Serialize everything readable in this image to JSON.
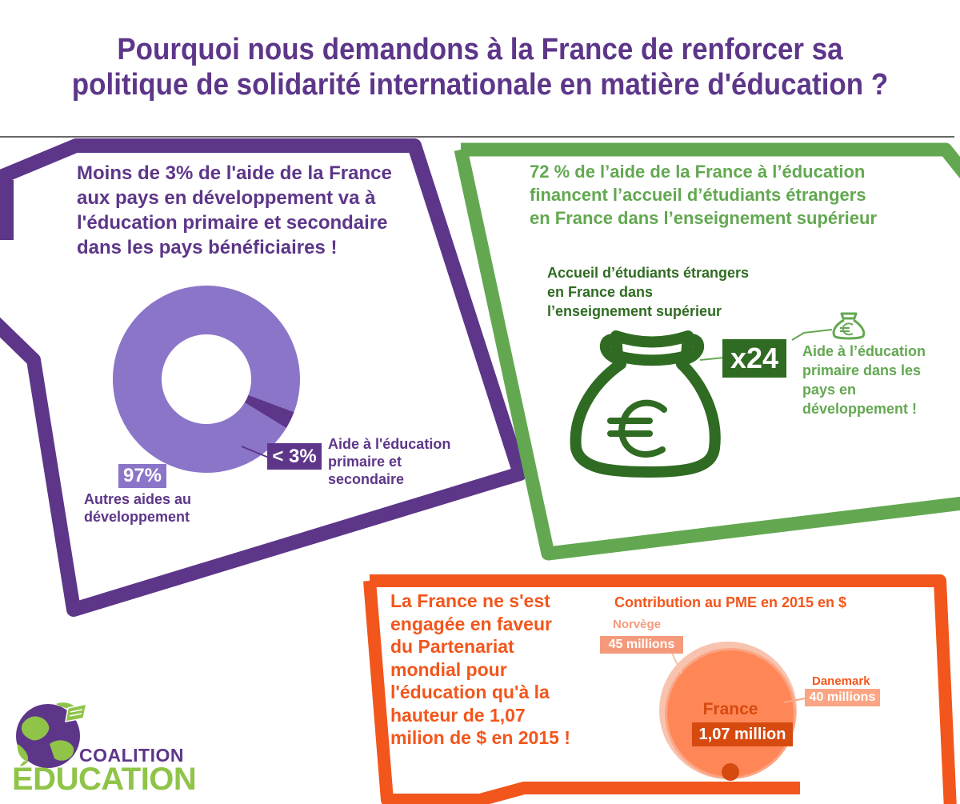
{
  "title": {
    "line1": "Pourquoi nous demandons à la France de renforcer sa",
    "line2": "politique de solidarité internationale en matière d'éducation ?"
  },
  "purple_panel": {
    "heading_lines": [
      "Moins de 3% de l'aide de la France",
      "aux pays en développement va à",
      "l'éducation primaire et secondaire",
      "dans les pays bénéficiaires !"
    ],
    "donut_large_value": "97%",
    "donut_large_label_lines": [
      "Autres aides au",
      "développement"
    ],
    "donut_small_value": "< 3%",
    "donut_small_label_lines": [
      "Aide à l'éducation",
      "primaire et",
      "secondaire"
    ]
  },
  "green_panel": {
    "heading_lines": [
      "72 % de l’aide de la France à l’éducation",
      "financent l’accueil d’étudiants étrangers",
      "en France dans l’enseignement supérieur"
    ],
    "big_bag_label_lines": [
      "Accueil d’étudiants étrangers",
      "en France dans",
      "l’enseignement supérieur"
    ],
    "multiplier": "x24",
    "small_bag_label_lines": [
      "Aide à l’éducation",
      "primaire dans les",
      "pays en",
      "développement !"
    ]
  },
  "orange_panel": {
    "text_lines": [
      "La France ne s'est",
      "engagée en faveur",
      "du Partenariat",
      "mondial pour",
      "l'éducation qu'à la",
      "hauteur de 1,07",
      "milion de $ en 2015 !"
    ],
    "chart_title": "Contribution au PME en 2015 en $",
    "norway_name": "Norvège",
    "norway_value": "45 millions",
    "denmark_name": "Danemark",
    "denmark_value": "40 millions",
    "france_name": "France",
    "france_value": "1,07 million"
  },
  "chart_data": {
    "type": "pie",
    "title": "",
    "labels": [
      "Autres aides au développement",
      "Aide à l'éducation primaire et secondaire"
    ],
    "values": [
      97,
      3
    ],
    "units": "%"
  },
  "logo": {
    "line1": "COALITION",
    "line2": "ÉDUCATION"
  },
  "colors": {
    "purple": "#5d3689",
    "purple_light": "#8b75c9",
    "green": "#63a851",
    "green_dark": "#2f6b22",
    "orange": "#f2561c",
    "orange_light": "#f49a7b"
  }
}
